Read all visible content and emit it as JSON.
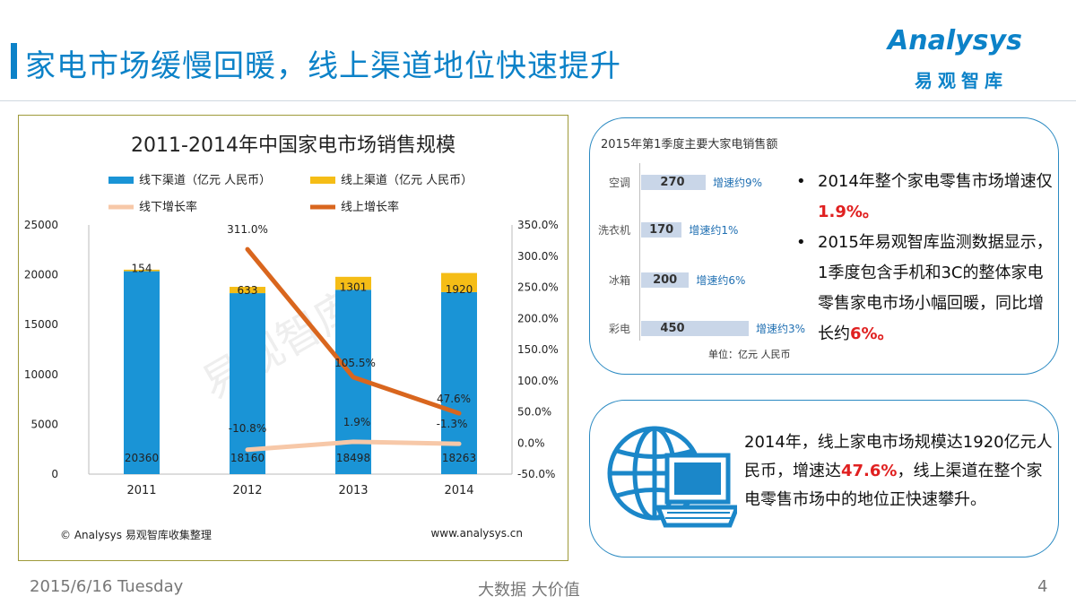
{
  "header": {
    "title": "家电市场缓慢回暖，线上渠道地位快速提升",
    "logo_en": "Analysys",
    "logo_cn": "易观智库"
  },
  "chart_data": [
    {
      "type": "bar",
      "stacked": true,
      "title": "2011-2014年中国家电市场销售规模",
      "categories": [
        "2011",
        "2012",
        "2013",
        "2014"
      ],
      "series": [
        {
          "name": "线下渠道（亿元 人民币）",
          "kind": "bar",
          "axis": "left",
          "color": "#1a94d6",
          "values": [
            20360,
            18160,
            18498,
            18263
          ],
          "labels": [
            "20360",
            "18160",
            "18498",
            "18263"
          ]
        },
        {
          "name": "线上渠道（亿元 人民币）",
          "kind": "bar",
          "axis": "left",
          "color": "#f5bd16",
          "values": [
            154,
            633,
            1301,
            1920
          ],
          "labels": [
            "154",
            "633",
            "1301",
            "1920"
          ]
        },
        {
          "name": "线下增长率",
          "kind": "line",
          "axis": "right",
          "color": "#f7c8a8",
          "values": [
            null,
            -10.8,
            1.9,
            -1.3
          ],
          "labels": [
            "",
            "-10.8%",
            "1.9%",
            "-1.3%"
          ]
        },
        {
          "name": "线上增长率",
          "kind": "line",
          "axis": "right",
          "color": "#d9661e",
          "values": [
            null,
            311.0,
            105.5,
            47.6
          ],
          "labels": [
            "",
            "311.0%",
            "105.5%",
            "47.6%"
          ]
        }
      ],
      "ylim_left": [
        0,
        25000
      ],
      "yticks_left": [
        "0",
        "5000",
        "10000",
        "15000",
        "20000",
        "25000"
      ],
      "ylim_right": [
        -50,
        350
      ],
      "yticks_right": [
        "-50.0%",
        "0.0%",
        "50.0%",
        "100.0%",
        "150.0%",
        "200.0%",
        "250.0%",
        "300.0%",
        "350.0%"
      ],
      "source": "© Analysys 易观智库收集整理",
      "website": "www.analysys.cn",
      "watermark": "易观智库"
    },
    {
      "type": "bar",
      "orientation": "horizontal",
      "title": "2015年第1季度主要大家电销售额",
      "categories": [
        "空调",
        "洗衣机",
        "冰箱",
        "彩电"
      ],
      "values": [
        270,
        170,
        200,
        450
      ],
      "growth": [
        "增速约9%",
        "增速约1%",
        "增速约6%",
        "增速约3%"
      ],
      "unit": "单位：亿元  人民币"
    }
  ],
  "summary": {
    "b1_prefix": "2014年整个家电零售市场增速仅",
    "b1_value": "1.9%",
    "b1_suffix": "。",
    "b2_prefix": "2015年易观智库监测数据显示，1季度包含手机和3C的整体家电零售家电市场小幅回暖，同比增长约",
    "b2_value": "6%",
    "b2_suffix": "。"
  },
  "online": {
    "prefix": "2014年，线上家电市场规模达1920亿元人民币，增速达",
    "value": "47.6%",
    "suffix": "，线上渠道在整个家电零售市场中的地位正快速攀升。"
  },
  "footer": {
    "date": "2015/6/16 Tuesday",
    "tagline": "大数据    大价值",
    "page": "4"
  }
}
